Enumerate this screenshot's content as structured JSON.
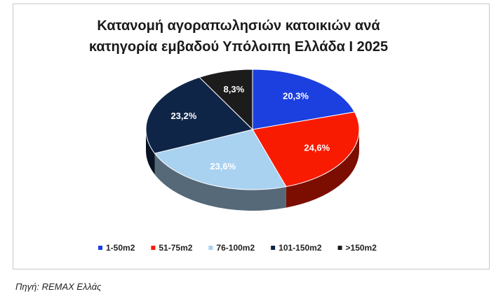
{
  "chart_data": {
    "type": "pie",
    "title": "Κατανομή αγοραπωλησιών κατοικιών ανά κατηγορία εμβαδού Υπόλοιπη Ελλάδα I 2025",
    "categories": [
      "1-50m2",
      "51-75m2",
      "76-100m2",
      "101-150m2",
      ">150m2"
    ],
    "values": [
      20.3,
      24.6,
      23.6,
      23.2,
      8.3
    ],
    "value_labels": [
      "20,3%",
      "24,6%",
      "23,6%",
      "23,2%",
      "8,3%"
    ],
    "colors": [
      "#1c3fe0",
      "#f81b02",
      "#a9d1f0",
      "#0f2548",
      "#1c1c1c"
    ],
    "legend": "bottom"
  },
  "source": "Πηγή: REMAX Ελλάς"
}
